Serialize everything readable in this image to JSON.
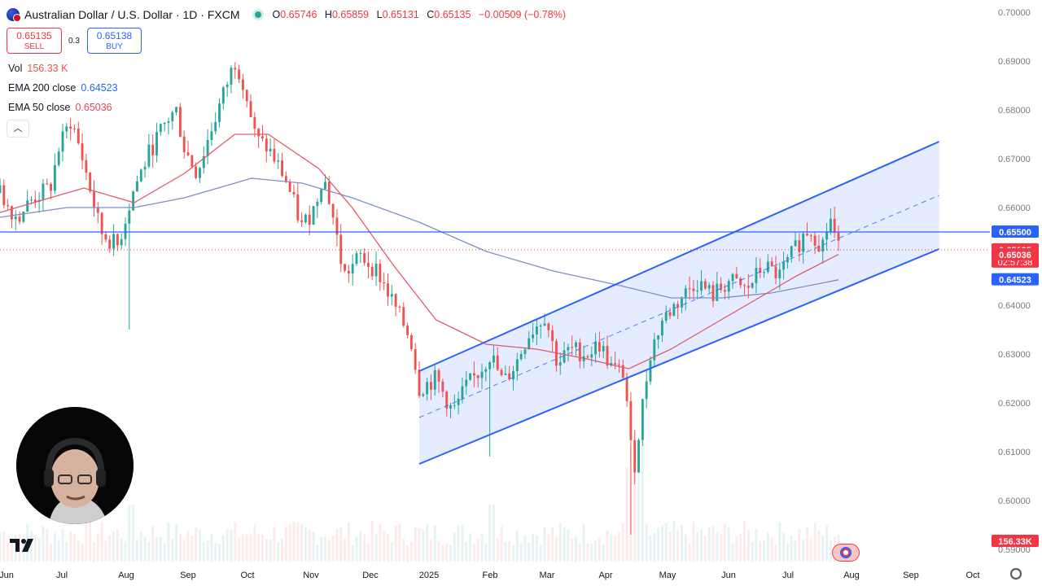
{
  "header": {
    "title": "Australian Dollar / U.S. Dollar · 1D · FXCM",
    "open_label": "O",
    "open": "0.65746",
    "high_label": "H",
    "high": "0.65859",
    "low_label": "L",
    "low": "0.65131",
    "close_label": "C",
    "close": "0.65135",
    "change": "−0.00509 (−0.78%)"
  },
  "trade": {
    "sell_price": "0.65135",
    "sell_label": "SELL",
    "spread": "0.3",
    "buy_price": "0.65138",
    "buy_label": "BUY"
  },
  "indicators": {
    "vol_label": "Vol",
    "vol_value": "156.33 K",
    "ema200_label": "EMA 200 close",
    "ema200_value": "0.64523",
    "ema50_label": "EMA 50 close",
    "ema50_value": "0.65036"
  },
  "colors": {
    "up": "#26a69a",
    "down": "#ef5350",
    "ema200": "#7e8ec6",
    "ema50": "#e05a6c",
    "channel": "#2962ff",
    "hline": "#2962ff"
  },
  "chart_data": {
    "type": "candlestick",
    "ylim": [
      0.5875,
      0.7025
    ],
    "y_ticks": [
      "0.70000",
      "0.69000",
      "0.68000",
      "0.67000",
      "0.66000",
      "0.65000",
      "0.64000",
      "0.63000",
      "0.62000",
      "0.61000",
      "0.60000",
      "0.59000"
    ],
    "x_labels": [
      "Jun",
      "Jul",
      "Aug",
      "Sep",
      "Oct",
      "Nov",
      "Dec",
      "2025",
      "Feb",
      "Mar",
      "Apr",
      "May",
      "Jun",
      "Jul",
      "Aug",
      "Sep",
      "Oct"
    ],
    "close_path": [
      {
        "t": 0,
        "v": 0.663
      },
      {
        "t": 0.02,
        "v": 0.658
      },
      {
        "t": 0.04,
        "v": 0.662
      },
      {
        "t": 0.06,
        "v": 0.664
      },
      {
        "t": 0.07,
        "v": 0.672
      },
      {
        "t": 0.085,
        "v": 0.678
      },
      {
        "t": 0.1,
        "v": 0.669
      },
      {
        "t": 0.12,
        "v": 0.655
      },
      {
        "t": 0.14,
        "v": 0.652
      },
      {
        "t": 0.16,
        "v": 0.664
      },
      {
        "t": 0.18,
        "v": 0.672
      },
      {
        "t": 0.2,
        "v": 0.678
      },
      {
        "t": 0.21,
        "v": 0.68
      },
      {
        "t": 0.22,
        "v": 0.672
      },
      {
        "t": 0.235,
        "v": 0.667
      },
      {
        "t": 0.25,
        "v": 0.675
      },
      {
        "t": 0.27,
        "v": 0.685
      },
      {
        "t": 0.28,
        "v": 0.69
      },
      {
        "t": 0.29,
        "v": 0.686
      },
      {
        "t": 0.305,
        "v": 0.674
      },
      {
        "t": 0.32,
        "v": 0.672
      },
      {
        "t": 0.34,
        "v": 0.666
      },
      {
        "t": 0.36,
        "v": 0.656
      },
      {
        "t": 0.375,
        "v": 0.66
      },
      {
        "t": 0.385,
        "v": 0.667
      },
      {
        "t": 0.395,
        "v": 0.66
      },
      {
        "t": 0.41,
        "v": 0.646
      },
      {
        "t": 0.43,
        "v": 0.65
      },
      {
        "t": 0.45,
        "v": 0.647
      },
      {
        "t": 0.47,
        "v": 0.64
      },
      {
        "t": 0.49,
        "v": 0.633
      },
      {
        "t": 0.5,
        "v": 0.623
      },
      {
        "t": 0.52,
        "v": 0.625
      },
      {
        "t": 0.54,
        "v": 0.618
      },
      {
        "t": 0.555,
        "v": 0.623
      },
      {
        "t": 0.57,
        "v": 0.626
      },
      {
        "t": 0.585,
        "v": 0.63
      },
      {
        "t": 0.6,
        "v": 0.624
      },
      {
        "t": 0.615,
        "v": 0.628
      },
      {
        "t": 0.63,
        "v": 0.634
      },
      {
        "t": 0.65,
        "v": 0.638
      },
      {
        "t": 0.665,
        "v": 0.628
      },
      {
        "t": 0.68,
        "v": 0.631
      },
      {
        "t": 0.7,
        "v": 0.63
      },
      {
        "t": 0.715,
        "v": 0.632
      },
      {
        "t": 0.73,
        "v": 0.627
      },
      {
        "t": 0.745,
        "v": 0.626
      },
      {
        "t": 0.755,
        "v": 0.605
      },
      {
        "t": 0.765,
        "v": 0.618
      },
      {
        "t": 0.775,
        "v": 0.63
      },
      {
        "t": 0.79,
        "v": 0.637
      },
      {
        "t": 0.81,
        "v": 0.641
      },
      {
        "t": 0.83,
        "v": 0.645
      },
      {
        "t": 0.85,
        "v": 0.642
      },
      {
        "t": 0.87,
        "v": 0.645
      },
      {
        "t": 0.89,
        "v": 0.643
      },
      {
        "t": 0.91,
        "v": 0.648
      },
      {
        "t": 0.93,
        "v": 0.646
      },
      {
        "t": 0.95,
        "v": 0.652
      },
      {
        "t": 0.965,
        "v": 0.656
      },
      {
        "t": 0.98,
        "v": 0.652
      },
      {
        "t": 0.99,
        "v": 0.658
      },
      {
        "t": 1,
        "v": 0.6514
      }
    ],
    "ema200_path": [
      {
        "t": 0,
        "v": 0.658
      },
      {
        "t": 0.08,
        "v": 0.66
      },
      {
        "t": 0.16,
        "v": 0.66
      },
      {
        "t": 0.22,
        "v": 0.662
      },
      {
        "t": 0.3,
        "v": 0.666
      },
      {
        "t": 0.36,
        "v": 0.665
      },
      {
        "t": 0.42,
        "v": 0.662
      },
      {
        "t": 0.5,
        "v": 0.657
      },
      {
        "t": 0.58,
        "v": 0.651
      },
      {
        "t": 0.66,
        "v": 0.647
      },
      {
        "t": 0.74,
        "v": 0.644
      },
      {
        "t": 0.8,
        "v": 0.6415
      },
      {
        "t": 0.86,
        "v": 0.6415
      },
      {
        "t": 0.92,
        "v": 0.6425
      },
      {
        "t": 1,
        "v": 0.6452
      }
    ],
    "ema50_path": [
      {
        "t": 0,
        "v": 0.659
      },
      {
        "t": 0.06,
        "v": 0.662
      },
      {
        "t": 0.1,
        "v": 0.664
      },
      {
        "t": 0.16,
        "v": 0.661
      },
      {
        "t": 0.22,
        "v": 0.667
      },
      {
        "t": 0.28,
        "v": 0.675
      },
      {
        "t": 0.32,
        "v": 0.675
      },
      {
        "t": 0.38,
        "v": 0.668
      },
      {
        "t": 0.42,
        "v": 0.66
      },
      {
        "t": 0.47,
        "v": 0.648
      },
      {
        "t": 0.52,
        "v": 0.637
      },
      {
        "t": 0.58,
        "v": 0.632
      },
      {
        "t": 0.64,
        "v": 0.631
      },
      {
        "t": 0.7,
        "v": 0.629
      },
      {
        "t": 0.75,
        "v": 0.627
      },
      {
        "t": 0.8,
        "v": 0.631
      },
      {
        "t": 0.85,
        "v": 0.636
      },
      {
        "t": 0.9,
        "v": 0.641
      },
      {
        "t": 0.95,
        "v": 0.646
      },
      {
        "t": 1,
        "v": 0.6504
      }
    ],
    "channel": {
      "x_start_frac": 0.5,
      "x_end_frac": 1.12,
      "lower_start": 0.6075,
      "lower_end": 0.6515,
      "upper_start": 0.6265,
      "upper_end": 0.6735
    },
    "horizontal_line": 0.655,
    "price_labels": {
      "hline": "0.65500",
      "last": "0.65135",
      "countdown": "02:57:38",
      "ema50": "0.65036",
      "ema200": "0.64523",
      "volume": "156.33K"
    }
  }
}
